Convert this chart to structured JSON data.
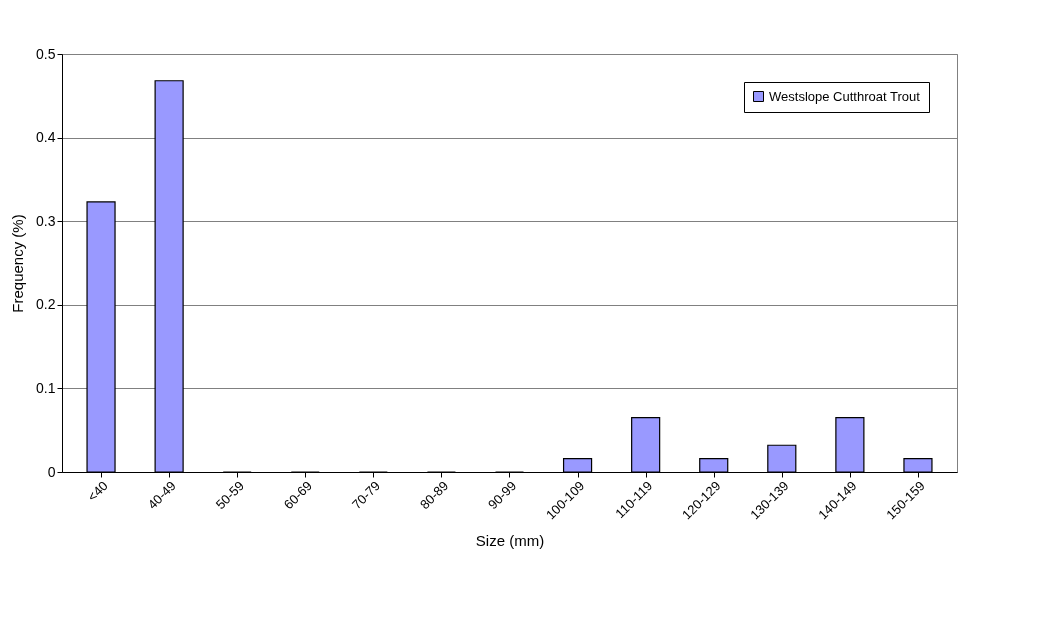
{
  "chart_data": {
    "type": "bar",
    "xlabel": "Size (mm)",
    "ylabel": "Frequency (%)",
    "categories": [
      "<40",
      "40-49",
      "50-59",
      "60-69",
      "70-79",
      "80-89",
      "90-99",
      "100-109",
      "110-119",
      "120-129",
      "130-139",
      "140-149",
      "150-159"
    ],
    "series": [
      {
        "name": "Westslope Cutthroat Trout",
        "color": "#9999ff",
        "values": [
          0.323,
          0.468,
          0,
          0,
          0,
          0,
          0,
          0.016,
          0.065,
          0.016,
          0.032,
          0.065,
          0.016
        ]
      }
    ],
    "ylim": [
      0,
      0.5
    ],
    "yticks": [
      0,
      0.1,
      0.2,
      0.3,
      0.4,
      0.5
    ],
    "grid": "y",
    "legend": "top right"
  }
}
